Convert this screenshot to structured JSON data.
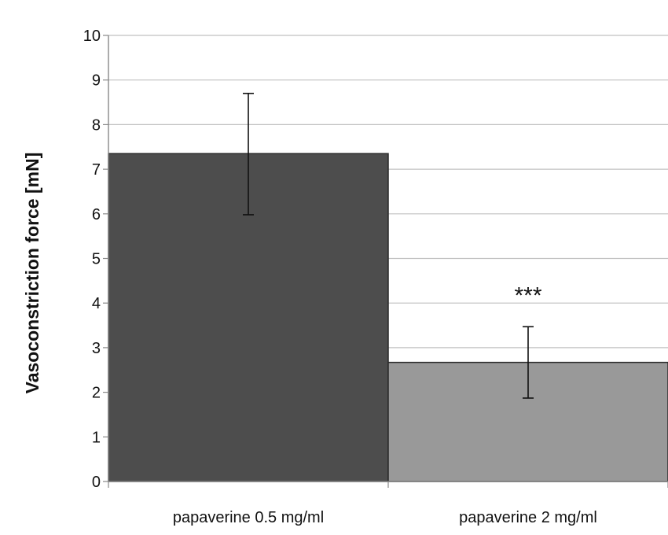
{
  "chart_data": {
    "type": "bar",
    "title": "",
    "xlabel": "",
    "ylabel": "Vasoconstriction force [mN]",
    "categories": [
      "papaverine 0.5 mg/ml",
      "papaverine 2 mg/ml"
    ],
    "values": [
      7.35,
      2.67
    ],
    "error_low": [
      5.98,
      1.87
    ],
    "error_high": [
      8.7,
      3.47
    ],
    "bar_colors": [
      "#4d4d4d",
      "#999999"
    ],
    "annotations": [
      {
        "category_index": 1,
        "text": "***"
      }
    ],
    "ylim": [
      0,
      10
    ],
    "yticks": [
      "0",
      "1",
      "2",
      "3",
      "4",
      "5",
      "6",
      "7",
      "8",
      "9",
      "10"
    ],
    "grid": true
  }
}
